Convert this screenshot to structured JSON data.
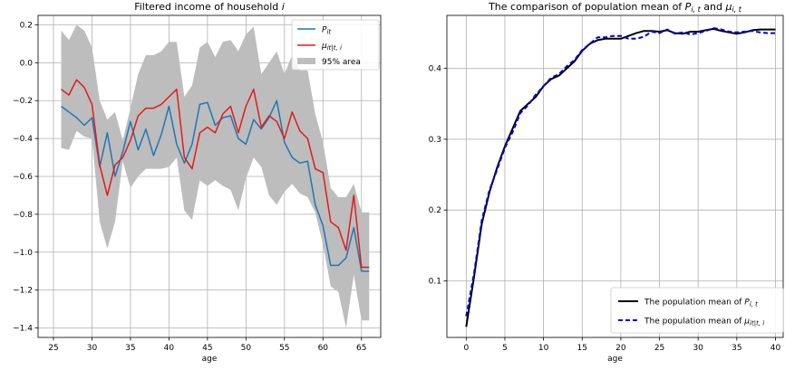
{
  "chart_data": [
    {
      "type": "line",
      "title": "Filtered income of household i",
      "xlabel": "age",
      "ylabel": "",
      "xlim": [
        23,
        67.5
      ],
      "ylim": [
        -1.45,
        0.25
      ],
      "xticks": [
        25,
        30,
        35,
        40,
        45,
        50,
        55,
        60,
        65
      ],
      "yticks": [
        -1.4,
        -1.2,
        -1.0,
        -0.8,
        -0.6,
        -0.4,
        -0.2,
        0.0,
        0.2
      ],
      "ytick_labels": [
        "−1.4",
        "−1.2",
        "−1.0",
        "−0.8",
        "−0.6",
        "−0.4",
        "−0.2",
        "0.0",
        "0.2"
      ],
      "grid": true,
      "legend_position": "top-right",
      "legend": [
        "P_it",
        "μ_it|t,i",
        "95% area"
      ],
      "x": [
        26,
        27,
        28,
        29,
        30,
        31,
        32,
        33,
        34,
        35,
        36,
        37,
        38,
        39,
        40,
        41,
        42,
        43,
        44,
        45,
        46,
        47,
        48,
        49,
        50,
        51,
        52,
        53,
        54,
        55,
        56,
        57,
        58,
        59,
        60,
        61,
        62,
        63,
        64,
        65,
        66
      ],
      "series": [
        {
          "name": "P_it",
          "color": "#1f77b4",
          "values": [
            -0.23,
            -0.26,
            -0.29,
            -0.33,
            -0.29,
            -0.55,
            -0.37,
            -0.6,
            -0.47,
            -0.31,
            -0.46,
            -0.35,
            -0.49,
            -0.38,
            -0.23,
            -0.43,
            -0.53,
            -0.43,
            -0.22,
            -0.21,
            -0.33,
            -0.29,
            -0.28,
            -0.4,
            -0.43,
            -0.3,
            -0.35,
            -0.29,
            -0.2,
            -0.42,
            -0.5,
            -0.53,
            -0.52,
            -0.75,
            -0.86,
            -1.07,
            -1.07,
            -1.03,
            -0.87,
            -1.1,
            -1.1
          ]
        },
        {
          "name": "μ_it|t,i",
          "color": "#e31a1c",
          "values": [
            -0.14,
            -0.17,
            -0.09,
            -0.13,
            -0.22,
            -0.54,
            -0.7,
            -0.54,
            -0.5,
            -0.41,
            -0.28,
            -0.24,
            -0.24,
            -0.22,
            -0.18,
            -0.14,
            -0.5,
            -0.56,
            -0.37,
            -0.34,
            -0.37,
            -0.27,
            -0.23,
            -0.37,
            -0.23,
            -0.14,
            -0.34,
            -0.28,
            -0.31,
            -0.4,
            -0.26,
            -0.36,
            -0.4,
            -0.56,
            -0.58,
            -0.84,
            -0.87,
            -0.99,
            -0.7,
            -1.08,
            -1.08
          ]
        }
      ],
      "band": {
        "name": "95% area",
        "color": "#bdbdbd",
        "upper": [
          0.17,
          0.12,
          0.2,
          0.17,
          0.08,
          -0.2,
          -0.3,
          -0.26,
          -0.41,
          -0.24,
          -0.06,
          0.04,
          0.04,
          0.06,
          0.11,
          0.11,
          -0.18,
          -0.12,
          0.08,
          0.11,
          0.03,
          0.11,
          0.12,
          0.06,
          0.15,
          0.19,
          -0.06,
          0.0,
          0.06,
          -0.06,
          0.04,
          -0.04,
          -0.04,
          -0.27,
          -0.42,
          -0.66,
          -0.71,
          -0.71,
          -0.64,
          -0.79,
          -0.79
        ],
        "lower": [
          -0.45,
          -0.46,
          -0.36,
          -0.39,
          -0.4,
          -0.84,
          -0.98,
          -0.84,
          -0.52,
          -0.66,
          -0.6,
          -0.56,
          -0.56,
          -0.56,
          -0.55,
          -0.5,
          -0.78,
          -0.83,
          -0.62,
          -0.65,
          -0.62,
          -0.65,
          -0.67,
          -0.78,
          -0.61,
          -0.5,
          -0.55,
          -0.7,
          -0.75,
          -0.68,
          -0.64,
          -0.69,
          -0.71,
          -0.79,
          -0.96,
          -1.18,
          -1.21,
          -1.4,
          -1.12,
          -1.36,
          -1.36
        ]
      }
    },
    {
      "type": "line",
      "title": "The comparison of population mean of P_i,t and μ_i,t",
      "xlabel": "age",
      "ylabel": "",
      "xlim": [
        -2.5,
        41
      ],
      "ylim": [
        0.02,
        0.475
      ],
      "xticks": [
        0,
        5,
        10,
        15,
        20,
        25,
        30,
        35,
        40
      ],
      "yticks": [
        0.1,
        0.2,
        0.3,
        0.4
      ],
      "ytick_labels": [
        "0.1",
        "0.2",
        "0.3",
        "0.4"
      ],
      "grid": true,
      "legend_position": "bottom-right",
      "legend": [
        "The population mean of P_i,t",
        "The population mean of μ_it|t,i"
      ],
      "x": [
        0,
        1,
        2,
        3,
        4,
        5,
        6,
        7,
        8,
        9,
        10,
        11,
        12,
        13,
        14,
        15,
        16,
        17,
        18,
        19,
        20,
        21,
        22,
        23,
        24,
        25,
        26,
        27,
        28,
        29,
        30,
        31,
        32,
        33,
        34,
        35,
        36,
        37,
        38,
        39,
        40
      ],
      "series": [
        {
          "name": "The population mean of P_i,t",
          "color": "#000000",
          "style": "solid",
          "values": [
            0.035,
            0.105,
            0.18,
            0.225,
            0.26,
            0.29,
            0.315,
            0.34,
            0.35,
            0.36,
            0.375,
            0.385,
            0.39,
            0.4,
            0.41,
            0.425,
            0.435,
            0.44,
            0.442,
            0.442,
            0.442,
            0.446,
            0.45,
            0.453,
            0.453,
            0.452,
            0.454,
            0.45,
            0.449,
            0.452,
            0.452,
            0.454,
            0.456,
            0.453,
            0.451,
            0.449,
            0.451,
            0.454,
            0.455,
            0.455,
            0.455
          ]
        },
        {
          "name": "The population mean of μ_it|t,i",
          "color": "#0000dd",
          "style": "dashed",
          "values": [
            0.05,
            0.11,
            0.185,
            0.228,
            0.257,
            0.288,
            0.31,
            0.337,
            0.348,
            0.363,
            0.375,
            0.387,
            0.392,
            0.403,
            0.412,
            0.426,
            0.435,
            0.444,
            0.444,
            0.446,
            0.446,
            0.442,
            0.442,
            0.445,
            0.452,
            0.45,
            0.455,
            0.449,
            0.451,
            0.448,
            0.45,
            0.453,
            0.457,
            0.455,
            0.452,
            0.451,
            0.452,
            0.453,
            0.451,
            0.45,
            0.45
          ]
        }
      ]
    }
  ]
}
